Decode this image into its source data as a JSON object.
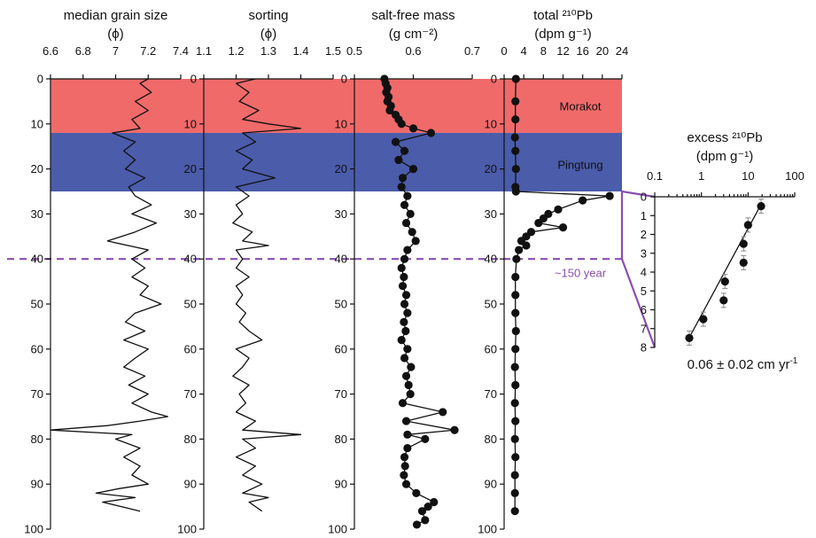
{
  "colors": {
    "morakot_band": "#f06a6a",
    "pingtung_band": "#4a5caa",
    "event_line": "#8a4fb0",
    "line": "#111111"
  },
  "layers": {
    "morakot_label": "Morakot",
    "morakot_range": [
      0,
      12
    ],
    "pingtung_label": "Pingtung",
    "pingtung_range": [
      12,
      25
    ],
    "event_label": "~150 year",
    "event_depth": 40
  },
  "chart_data": [
    {
      "type": "line",
      "title": "median grain size",
      "unit": "(ϕ)",
      "xlim": [
        6.6,
        7.4
      ],
      "x_ticks": [
        "6.6",
        "6.8",
        "7",
        "7.2",
        "7.4"
      ],
      "ylim": [
        100,
        0
      ],
      "y_ticks": [
        "0",
        "10",
        "20",
        "30",
        "40",
        "50",
        "60",
        "70",
        "80",
        "90",
        "100"
      ],
      "depth": [
        0,
        1,
        3,
        5,
        7,
        9,
        11,
        12,
        14,
        16,
        18,
        20,
        22,
        24,
        26,
        28,
        30,
        32,
        34,
        36,
        38,
        40,
        42,
        44,
        46,
        48,
        50,
        52,
        54,
        56,
        58,
        60,
        62,
        64,
        66,
        68,
        70,
        72,
        74,
        75,
        76,
        77,
        78,
        79,
        80,
        82,
        84,
        86,
        88,
        90,
        91,
        92,
        93,
        94,
        96
      ],
      "values": [
        7.2,
        7.15,
        7.22,
        7.12,
        7.2,
        7.1,
        7.15,
        6.98,
        7.12,
        7.05,
        7.12,
        7.06,
        7.18,
        7.08,
        7.12,
        7.22,
        7.1,
        7.25,
        7.12,
        6.95,
        7.2,
        7.1,
        7.18,
        7.1,
        7.2,
        7.15,
        7.28,
        7.12,
        7.06,
        7.18,
        7.05,
        7.2,
        7.12,
        7.05,
        7.18,
        7.08,
        7.2,
        7.1,
        7.22,
        7.32,
        7.15,
        6.95,
        6.6,
        7.1,
        7.0,
        7.15,
        7.05,
        7.15,
        7.1,
        7.2,
        7.02,
        6.88,
        7.12,
        6.92,
        7.15
      ]
    },
    {
      "type": "line",
      "title": "sorting",
      "unit": "(ϕ)",
      "xlim": [
        1.1,
        1.5
      ],
      "x_ticks": [
        "1.1",
        "1.2",
        "1.3",
        "1.4",
        "1.5"
      ],
      "ylim": [
        100,
        0
      ],
      "y_ticks": [
        "0",
        "10",
        "20",
        "30",
        "40",
        "50",
        "60",
        "70",
        "80",
        "90",
        "100"
      ],
      "depth": [
        0,
        1,
        3,
        5,
        7,
        9,
        10,
        11,
        12,
        14,
        16,
        18,
        20,
        22,
        24,
        26,
        28,
        30,
        32,
        34,
        36,
        37,
        38,
        40,
        42,
        44,
        46,
        48,
        50,
        52,
        54,
        56,
        58,
        60,
        62,
        64,
        66,
        68,
        70,
        72,
        74,
        76,
        78,
        79,
        80,
        82,
        84,
        86,
        88,
        90,
        92,
        93,
        94,
        96
      ],
      "values": [
        1.26,
        1.2,
        1.24,
        1.21,
        1.27,
        1.22,
        1.3,
        1.4,
        1.22,
        1.26,
        1.2,
        1.25,
        1.22,
        1.32,
        1.2,
        1.24,
        1.2,
        1.22,
        1.19,
        1.25,
        1.22,
        1.3,
        1.2,
        1.22,
        1.2,
        1.24,
        1.2,
        1.22,
        1.2,
        1.23,
        1.21,
        1.24,
        1.28,
        1.2,
        1.24,
        1.22,
        1.19,
        1.24,
        1.21,
        1.23,
        1.2,
        1.26,
        1.22,
        1.4,
        1.22,
        1.26,
        1.2,
        1.26,
        1.22,
        1.28,
        1.22,
        1.3,
        1.24,
        1.28
      ]
    },
    {
      "type": "line",
      "title": "salt-free mass",
      "unit": "(g cm⁻²)",
      "xlim": [
        0.5,
        0.7
      ],
      "x_ticks": [
        "0.5",
        "0.6",
        "0.7"
      ],
      "ylim": [
        100,
        0
      ],
      "y_ticks": [
        "0",
        "10",
        "20",
        "30",
        "40",
        "50",
        "60",
        "70",
        "80",
        "90",
        "100"
      ],
      "depth": [
        0,
        1,
        2,
        3,
        4,
        5,
        6,
        7,
        8,
        9,
        10,
        11,
        12,
        14,
        16,
        18,
        20,
        22,
        24,
        26,
        28,
        30,
        32,
        34,
        36,
        38,
        40,
        42,
        44,
        46,
        48,
        50,
        52,
        54,
        56,
        58,
        60,
        62,
        64,
        66,
        68,
        70,
        72,
        74,
        76,
        78,
        79,
        80,
        82,
        84,
        86,
        88,
        90,
        92,
        94,
        95,
        96,
        98,
        99
      ],
      "values": [
        0.551,
        0.553,
        0.556,
        0.554,
        0.558,
        0.556,
        0.562,
        0.56,
        0.57,
        0.575,
        0.58,
        0.6,
        0.63,
        0.57,
        0.585,
        0.575,
        0.6,
        0.582,
        0.58,
        0.59,
        0.585,
        0.595,
        0.588,
        0.598,
        0.604,
        0.59,
        0.585,
        0.58,
        0.584,
        0.582,
        0.588,
        0.585,
        0.59,
        0.584,
        0.587,
        0.58,
        0.59,
        0.585,
        0.596,
        0.588,
        0.592,
        0.595,
        0.582,
        0.65,
        0.588,
        0.67,
        0.59,
        0.62,
        0.59,
        0.585,
        0.586,
        0.584,
        0.588,
        0.605,
        0.635,
        0.625,
        0.615,
        0.62,
        0.606
      ]
    },
    {
      "type": "line",
      "title": "total ²¹⁰Pb",
      "unit": "(dpm g⁻¹)",
      "xlim": [
        0,
        24
      ],
      "x_ticks": [
        "0",
        "4",
        "8",
        "12",
        "16",
        "20",
        "24"
      ],
      "ylim": [
        100,
        0
      ],
      "y_ticks": [
        "0",
        "10",
        "20",
        "30",
        "40",
        "50",
        "60",
        "70",
        "80",
        "90",
        "100"
      ],
      "depth": [
        0,
        5,
        9,
        13,
        16,
        20,
        24,
        25,
        26,
        27,
        29,
        30,
        31,
        32,
        33,
        34,
        35,
        36,
        37,
        38,
        40,
        44,
        48,
        52,
        56,
        60,
        64,
        68,
        72,
        76,
        80,
        84,
        88,
        92,
        96
      ],
      "values": [
        2.4,
        2.3,
        2.3,
        2.2,
        2.3,
        2.4,
        2.3,
        2.4,
        21.5,
        16,
        11,
        9,
        8,
        7,
        12,
        5.5,
        4.5,
        3.5,
        4.5,
        3,
        2.5,
        2.3,
        2.3,
        2.3,
        2.4,
        2.3,
        2.2,
        2.3,
        2.2,
        2.3,
        2.2,
        2.3,
        2.2,
        2.2,
        2.2
      ]
    },
    {
      "type": "scatter",
      "title": "excess ²¹⁰Pb",
      "unit": "(dpm g⁻¹)",
      "scale": "log",
      "xlim": [
        0.1,
        100
      ],
      "x_ticks": [
        "0.1",
        "1",
        "10",
        "100"
      ],
      "ylim": [
        8,
        0
      ],
      "y_ticks": [
        "0",
        "1",
        "2",
        "3",
        "4",
        "5",
        "6",
        "7",
        "8"
      ],
      "depth": [
        0.5,
        1.5,
        2.5,
        3.5,
        4.5,
        5.5,
        6.5,
        7.5
      ],
      "values": [
        19,
        10,
        8,
        8,
        3.2,
        3,
        1.1,
        0.55
      ],
      "fit_line": {
        "from": [
          20,
          0.3
        ],
        "to": [
          0.6,
          7.3
        ]
      },
      "annotation": "0.06 ± 0.02 cm yr",
      "annotation_sup": "-1"
    }
  ]
}
